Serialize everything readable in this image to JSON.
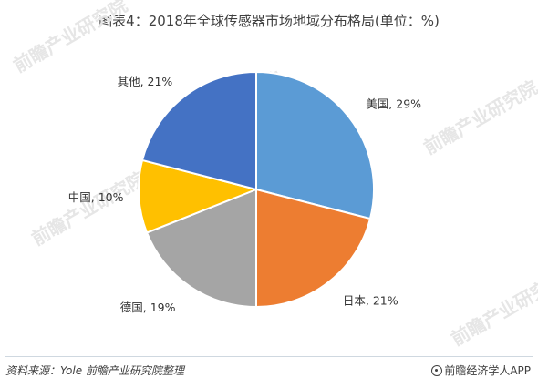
{
  "title": "图表4：2018年全球传感器市场地域分布格局(单位：%)",
  "chart_data": {
    "type": "pie",
    "title": "图表4：2018年全球传感器市场地域分布格局(单位：%)",
    "categories": [
      "美国",
      "日本",
      "德国",
      "中国",
      "其他"
    ],
    "values": [
      29,
      21,
      19,
      10,
      21
    ],
    "labels": [
      "美国, 29%",
      "日本, 21%",
      "德国, 19%",
      "中国, 10%",
      "其他, 21%"
    ],
    "colors": [
      "#5b9bd5",
      "#ed7d31",
      "#a5a5a5",
      "#ffc000",
      "#4472c4"
    ],
    "start_angle": "12 o'clock",
    "direction": "clockwise",
    "legend": "none"
  },
  "watermark": "前瞻产业研究院",
  "footer": {
    "source": "资料来源：Yole 前瞻产业研究院整理",
    "brand": "前瞻经济学人APP",
    "brand_icon": "at-icon"
  }
}
